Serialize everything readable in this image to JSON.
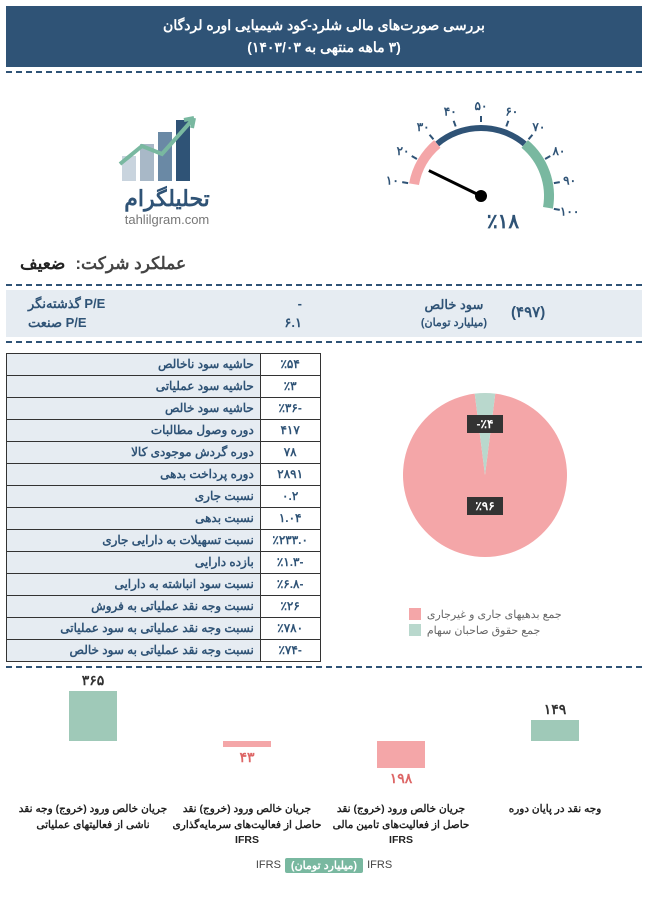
{
  "header": {
    "line1": "بررسی صورت‌های مالی شلرد-کود شیمیایی اوره لردگان",
    "line2": "(۳ ماهه منتهی به ۱۴۰۳/۰۳)"
  },
  "logo": {
    "text": "تحلیلگرام",
    "sub": "tahlilgram.com"
  },
  "gauge": {
    "value_label": "٪۱۸",
    "ticks": [
      "۱۰",
      "۲۰",
      "۳۰",
      "۴۰",
      "۵۰",
      "۶۰",
      "۷۰",
      "۸۰",
      "۹۰",
      "۱۰۰"
    ],
    "tick_angles": [
      -170,
      -150,
      -130,
      -110,
      -90,
      -70,
      -50,
      -30,
      -10,
      10
    ],
    "needle_angle": -154,
    "arc_segments": [
      {
        "start": -170,
        "end": -130,
        "color": "#f4a6a8",
        "width": 10
      },
      {
        "start": -130,
        "end": -50,
        "color": "#2f5376",
        "width": 6
      },
      {
        "start": -50,
        "end": 10,
        "color": "#79b8a0",
        "width": 10
      }
    ],
    "radius": 68
  },
  "performance": {
    "label": "عملکرد شرکت:",
    "value": "ضعیف",
    "value_color": "#333"
  },
  "pe": {
    "profit_label": "سود خالص",
    "profit_sub": "(میلیارد تومان)",
    "profit_val": "(۴۹۷)",
    "trailing_label": "P/E گذشته‌نگر",
    "trailing_val": "-",
    "industry_label": "P/E صنعت",
    "industry_val": "۶.۱"
  },
  "ratios": [
    {
      "label": "حاشیه سود ناخالص",
      "val": "٪۵۴"
    },
    {
      "label": "حاشیه سود عملیاتی",
      "val": "٪۳"
    },
    {
      "label": "حاشیه سود خالص",
      "val": "٪۳۶-"
    },
    {
      "label": "دوره وصول مطالبات",
      "val": "۴۱۷"
    },
    {
      "label": "دوره گردش موجودی کالا",
      "val": "۷۸"
    },
    {
      "label": "دوره  پرداخت بدهی",
      "val": "۲۸۹۱"
    },
    {
      "label": "نسبت جاری",
      "val": "۰.۲"
    },
    {
      "label": "نسبت بدهی",
      "val": "۱.۰۴"
    },
    {
      "label": "نسبت تسهیلات به دارایی جاری",
      "val": "٪۲۳۳.۰"
    },
    {
      "label": "بازده دارایی",
      "val": "٪۱.۳-"
    },
    {
      "label": "نسبت سود انباشته به دارایی",
      "val": "٪۶.۸-"
    },
    {
      "label": "نسبت وجه نقد عملیاتی به فروش",
      "val": "٪۲۶"
    },
    {
      "label": "نسبت وجه نقد عملیاتی به سود عملیاتی",
      "val": "٪۷۸۰"
    },
    {
      "label": "نسبت وجه نقد عملیاتی به سود خالص",
      "val": "٪۷۴-"
    }
  ],
  "pie": {
    "slices": [
      {
        "label": "جمع بدهیهای جاری و غیرجاری",
        "value": 96,
        "color": "#f4a6a8",
        "text": "٪۹۶"
      },
      {
        "label": "جمع حقوق صاحبان سهام",
        "value": 4,
        "color": "#b9d8cd",
        "text": "٪۴-"
      }
    ],
    "label_color": "#fff",
    "label_bg": "#333"
  },
  "cashflow": {
    "baseline": 55,
    "max_height": 50,
    "items": [
      {
        "label": "جریان خالص ورود (خروج) وجه نقد ناشی از فعالیتهای عملیاتی",
        "val": "۳۶۵",
        "num": 365,
        "color": "#9fc9b8",
        "positive": true
      },
      {
        "label": "جریان خالص ورود (خروج) نقد حاصل از فعالیت‌های سرمایه‌گذاری IFRS",
        "val": "۴۳",
        "num": 43,
        "color": "#f4a6a8",
        "positive": false
      },
      {
        "label": "جریان خالص ورود (خروج) نقد حاصل از فعالیت‌های تامین مالی IFRS",
        "val": "۱۹۸",
        "num": 198,
        "color": "#f4a6a8",
        "positive": false
      },
      {
        "label": "وجه نقد در پایان دوره",
        "val": "۱۴۹",
        "num": 149,
        "color": "#9fc9b8",
        "positive": true
      }
    ],
    "max_abs": 365,
    "footer_tag": "(میلیارد تومان)",
    "footer_text": "IFRS"
  },
  "colors": {
    "header_bg": "#2f5376",
    "panel_bg": "#e6ecf2",
    "accent_green": "#79b8a0",
    "accent_pink": "#f4a6a8"
  }
}
